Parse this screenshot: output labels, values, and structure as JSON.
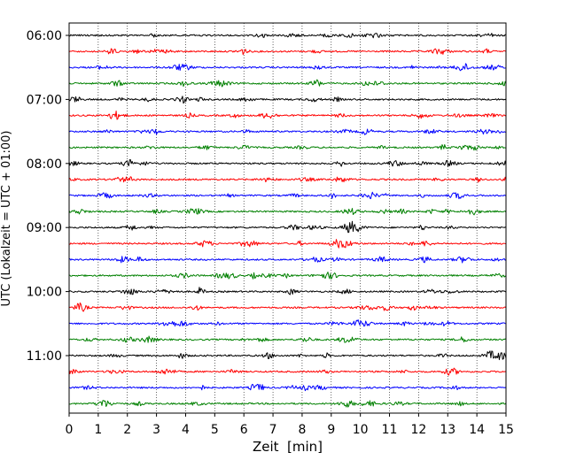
{
  "chart_data": {
    "type": "line",
    "title": "",
    "xlabel": "Zeit  [min]",
    "ylabel": "UTC (Lokalzeit = UTC + 01:00)",
    "xlim": [
      0,
      15
    ],
    "x_ticks": [
      "0",
      "1",
      "2",
      "3",
      "4",
      "5",
      "6",
      "7",
      "8",
      "9",
      "10",
      "11",
      "12",
      "13",
      "14",
      "15"
    ],
    "grid": {
      "vertical": "dotted",
      "horizontal": "none"
    },
    "y_ticks": [
      "06:00",
      "07:00",
      "08:00",
      "09:00",
      "10:00",
      "11:00"
    ],
    "trace_interval_minutes": 15,
    "traces": [
      {
        "start": "06:00",
        "color": "#000000"
      },
      {
        "start": "06:15",
        "color": "#ff0000"
      },
      {
        "start": "06:30",
        "color": "#0000ff"
      },
      {
        "start": "06:45",
        "color": "#008000"
      },
      {
        "start": "07:00",
        "color": "#000000"
      },
      {
        "start": "07:15",
        "color": "#ff0000"
      },
      {
        "start": "07:30",
        "color": "#0000ff"
      },
      {
        "start": "07:45",
        "color": "#008000"
      },
      {
        "start": "08:00",
        "color": "#000000"
      },
      {
        "start": "08:15",
        "color": "#ff0000"
      },
      {
        "start": "08:30",
        "color": "#0000ff"
      },
      {
        "start": "08:45",
        "color": "#008000"
      },
      {
        "start": "09:00",
        "color": "#000000"
      },
      {
        "start": "09:15",
        "color": "#ff0000"
      },
      {
        "start": "09:30",
        "color": "#0000ff"
      },
      {
        "start": "09:45",
        "color": "#008000"
      },
      {
        "start": "10:00",
        "color": "#000000"
      },
      {
        "start": "10:15",
        "color": "#ff0000"
      },
      {
        "start": "10:30",
        "color": "#0000ff"
      },
      {
        "start": "10:45",
        "color": "#008000"
      },
      {
        "start": "11:00",
        "color": "#000000"
      },
      {
        "start": "11:15",
        "color": "#ff0000"
      },
      {
        "start": "11:30",
        "color": "#0000ff"
      },
      {
        "start": "11:45",
        "color": "#008000"
      }
    ]
  }
}
